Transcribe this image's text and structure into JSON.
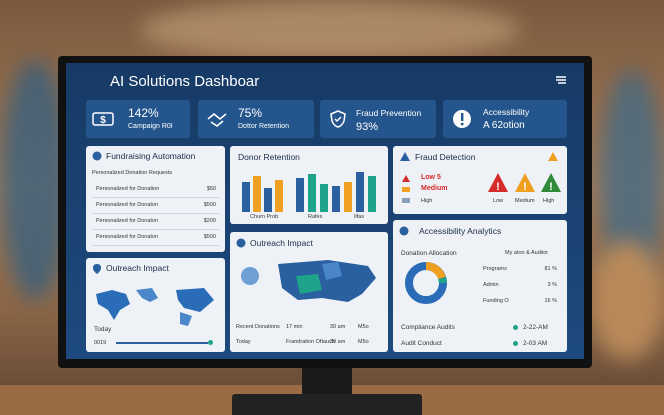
{
  "header": {
    "title": "AI Solutions Dashboar"
  },
  "kpis": [
    {
      "primary": "142%",
      "secondary": "Campaign R0I"
    },
    {
      "primary": "75%",
      "secondary": "Dottor Retention"
    },
    {
      "primary": "Fraud Prevention",
      "secondary": "93%"
    },
    {
      "primary": "Accessibility",
      "secondary": "A 62otion"
    }
  ],
  "fundraising": {
    "title": "Fundraising Automation",
    "subtitle": "Personalized Donation Requests",
    "rows": [
      [
        "Personalized for Donation",
        "$50"
      ],
      [
        "Personalized for Donaton",
        "$500"
      ],
      [
        "Personalized for Donaton",
        "$200"
      ],
      [
        "Personalized for Donaton",
        "$500"
      ]
    ]
  },
  "donor_retention": {
    "title": "Donor Retention",
    "labels": [
      "Churn Prob",
      "Rafes",
      "Ilfas"
    ]
  },
  "fraud": {
    "title": "Fraud Detection",
    "legend": [
      "Low 5",
      "Medium",
      "High"
    ],
    "levels": [
      "Low",
      "Medium",
      "High"
    ]
  },
  "outreach_map": {
    "title": "Outreach Impact",
    "caption": "Today",
    "footer": "0019"
  },
  "outreach": {
    "title": "Outreach Impact",
    "rows": [
      [
        "Recent Donations",
        "17 min",
        "30 am",
        "M5o"
      ],
      [
        "Today",
        "Frandration Oftauch",
        "30 am",
        "M5o"
      ]
    ]
  },
  "accessibility": {
    "title": "Accessibility Analytics",
    "allocation": "Donation Allocation",
    "note": "My aton & Audiior",
    "rows": [
      [
        "Programs",
        "81 %"
      ],
      [
        "Admin",
        "3 %"
      ],
      [
        "Funding O",
        "16 %"
      ]
    ],
    "audits": [
      [
        "Compliance Audits",
        "2-22-AM"
      ],
      [
        "Audit Conduct",
        "2-03 AM"
      ]
    ]
  }
}
